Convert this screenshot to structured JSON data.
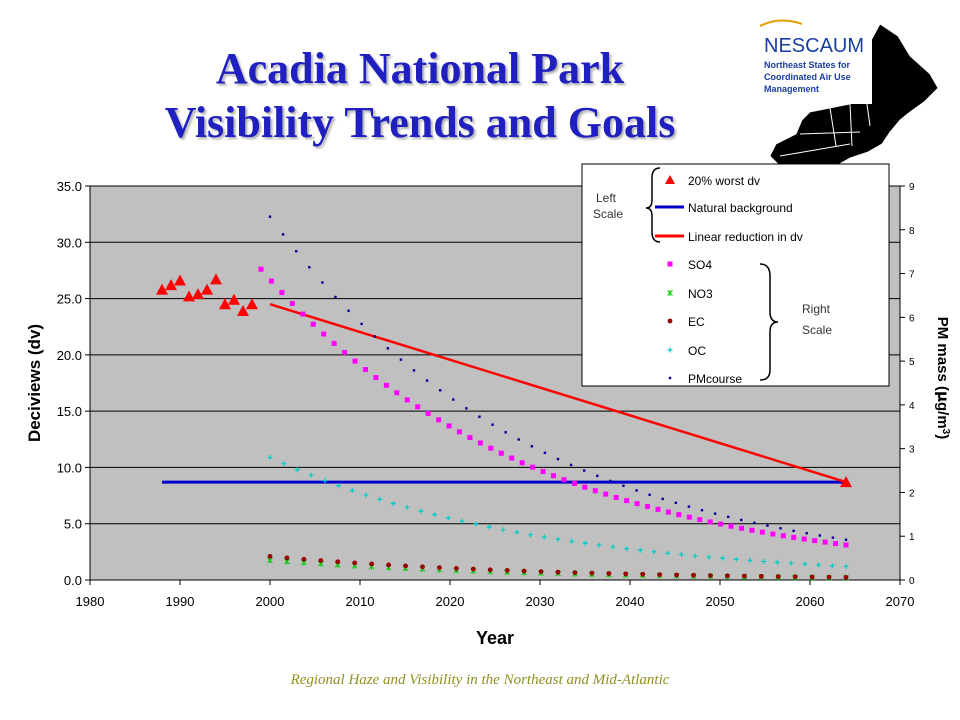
{
  "slide": {
    "title_line1": "Acadia National Park",
    "title_line2": "Visibility Trends and Goals",
    "footer": "Regional Haze and Visibility in the Northeast and Mid-Atlantic"
  },
  "logo": {
    "name": "NESCAUM",
    "subtitle_lines": [
      "Northeast States for",
      "Coordinated Air Use",
      "Management"
    ],
    "color": "#1a3ea0"
  },
  "colors": {
    "title": "#2020c0",
    "plot_bg": "#c0c0c0",
    "worst_dv": "#ff0000",
    "natural_background": "#0000cc",
    "linear_reduction": "#ff0000",
    "so4": "#ff00ff",
    "no3": "#00cc00",
    "ec": "#990000",
    "oc": "#00cccc",
    "pmcourse": "#000099",
    "footer": "#909020"
  },
  "chart_data": {
    "type": "line",
    "xlabel": "Year",
    "ylabel_left": "Deciviews (dv)",
    "ylabel_right_main": "PM mass (",
    "ylabel_right_unit_mu": "μ",
    "ylabel_right_unit_rest": "g/m",
    "ylabel_right_sup": "3",
    "ylabel_right_close": ")",
    "xlim": [
      1980,
      2070
    ],
    "ylim_left": [
      0,
      35
    ],
    "ylim_right": [
      0,
      9
    ],
    "x_ticks": [
      1980,
      1990,
      2000,
      2010,
      2020,
      2030,
      2040,
      2050,
      2060,
      2070
    ],
    "y_ticks_left": [
      "0.0",
      "5.0",
      "10.0",
      "15.0",
      "20.0",
      "25.0",
      "30.0",
      "35.0"
    ],
    "y_ticks_right": [
      "0",
      "1",
      "2",
      "3",
      "4",
      "5",
      "6",
      "7",
      "8",
      "9"
    ],
    "grid": "horizontal",
    "legend": {
      "position": "top-right",
      "left_group_label": [
        "Left",
        "Scale"
      ],
      "right_group_label": [
        "Right",
        "Scale"
      ],
      "entries": [
        "20% worst dv",
        "Natural background",
        "Linear reduction in dv",
        "SO4",
        "NO3",
        "EC",
        "OC",
        "PMcourse"
      ]
    },
    "series": [
      {
        "name": "20% worst dv",
        "axis": "left",
        "kind": "triangles",
        "points": [
          [
            1988,
            25.8
          ],
          [
            1989,
            26.2
          ],
          [
            1990,
            26.6
          ],
          [
            1991,
            25.2
          ],
          [
            1992,
            25.4
          ],
          [
            1993,
            25.8
          ],
          [
            1994,
            26.7
          ],
          [
            1995,
            24.5
          ],
          [
            1996,
            24.9
          ],
          [
            1997,
            23.9
          ],
          [
            1998,
            24.5
          ],
          [
            2064,
            8.7
          ]
        ]
      },
      {
        "name": "Natural background",
        "axis": "left",
        "kind": "line",
        "points": [
          [
            1988,
            8.7
          ],
          [
            2064,
            8.7
          ]
        ]
      },
      {
        "name": "Linear reduction in dv",
        "axis": "left",
        "kind": "line",
        "points": [
          [
            2000,
            24.5
          ],
          [
            2064,
            8.7
          ]
        ]
      },
      {
        "name": "SO4",
        "axis": "right",
        "kind": "curve",
        "start": [
          1999,
          7.1
        ],
        "end": [
          2064,
          0.8
        ]
      },
      {
        "name": "NO3",
        "axis": "right",
        "kind": "curve",
        "start": [
          2000,
          0.45
        ],
        "end": [
          2064,
          0.05
        ]
      },
      {
        "name": "EC",
        "axis": "right",
        "kind": "curve",
        "start": [
          2000,
          0.54
        ],
        "end": [
          2064,
          0.06
        ]
      },
      {
        "name": "OC",
        "axis": "right",
        "kind": "curve",
        "start": [
          2000,
          2.8
        ],
        "end": [
          2064,
          0.31
        ]
      },
      {
        "name": "PMcourse",
        "axis": "right",
        "kind": "curve",
        "start": [
          2000,
          8.3
        ],
        "end": [
          2064,
          0.92
        ]
      }
    ]
  }
}
